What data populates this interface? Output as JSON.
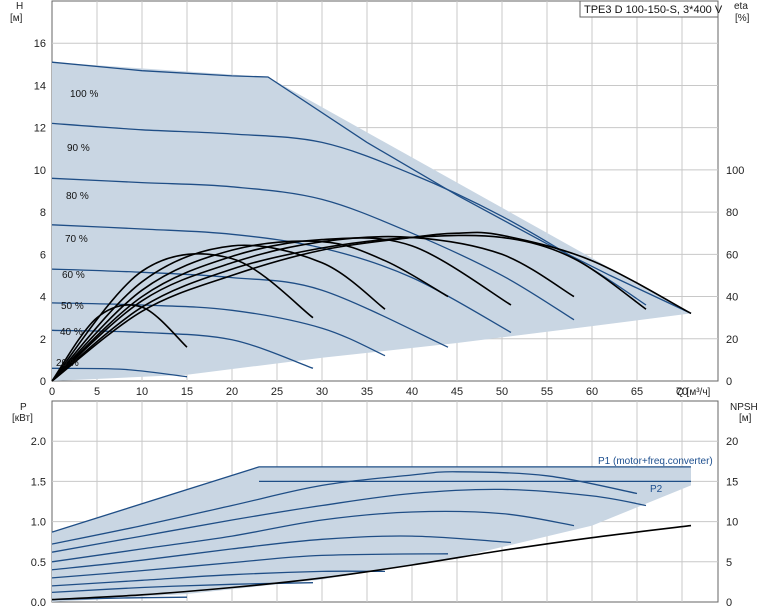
{
  "title": "TPE3 D 100-150-S, 3*400 V",
  "colors": {
    "envelope_fill": "#c9d6e3",
    "envelope_edge": "#1f4e86",
    "qh_curve": "#1f4e86",
    "eta_curve": "#000000",
    "npsh_curve": "#000000",
    "power_curve": "#1f4e86",
    "grid": "#c8c8c8"
  },
  "top_axes": {
    "left_title": "H",
    "left_unit": "[м]",
    "right_title": "eta",
    "right_unit": "[%]",
    "x_title": "Q [м³/ч]",
    "x_ticks": [
      "0",
      "5",
      "10",
      "15",
      "20",
      "25",
      "30",
      "35",
      "40",
      "45",
      "50",
      "55",
      "60",
      "65",
      "70"
    ],
    "left_ticks": [
      "0",
      "2",
      "4",
      "6",
      "8",
      "10",
      "12",
      "14",
      "16"
    ],
    "right_ticks": [
      "0",
      "20",
      "40",
      "60",
      "80",
      "100"
    ]
  },
  "bottom_axes": {
    "left_title": "P",
    "left_unit": "[кВт]",
    "right_title": "NPSH",
    "right_unit": "[м]",
    "left_ticks": [
      "0.0",
      "0.5",
      "1.0",
      "1.5",
      "2.0"
    ],
    "right_ticks": [
      "0",
      "5",
      "10",
      "15",
      "20"
    ]
  },
  "speed_labels": [
    "100 %",
    "90 %",
    "80 %",
    "70 %",
    "60 %",
    "50 %",
    "40 %",
    "20 %"
  ],
  "legend": {
    "p1": "P1 (motor+freq.converter)",
    "p2": "P2"
  },
  "chart_data": [
    {
      "type": "line",
      "title": "TPE3 D 100-150-S, 3*400 V",
      "xlabel": "Q [м³/ч]",
      "ylabel": "H [м]",
      "y2label": "eta [%]",
      "xlim": [
        0,
        74
      ],
      "ylim": [
        0,
        18
      ],
      "y2lim": [
        0,
        180
      ],
      "grid": true,
      "envelope": {
        "x": [
          0,
          24,
          71,
          71,
          60,
          45,
          30,
          15,
          0
        ],
        "y": [
          15.1,
          14.4,
          3.2,
          3.2,
          2.6,
          1.8,
          1.1,
          0.3,
          0.0
        ]
      },
      "series": [
        {
          "name": "100 %",
          "x": [
            0,
            10,
            20,
            24,
            35,
            45,
            55,
            62,
            71
          ],
          "y": [
            15.1,
            14.7,
            14.45,
            14.4,
            11.3,
            8.8,
            6.5,
            5.0,
            3.2
          ],
          "range_left": 15.1
        },
        {
          "name": "90 %",
          "x": [
            0,
            10,
            20,
            30,
            40,
            50,
            60,
            66
          ],
          "y": [
            12.2,
            11.9,
            11.7,
            11.3,
            9.8,
            7.8,
            5.3,
            3.6
          ]
        },
        {
          "name": "80 %",
          "x": [
            0,
            10,
            20,
            30,
            40,
            50,
            58
          ],
          "y": [
            9.6,
            9.4,
            9.2,
            8.6,
            7.0,
            5.0,
            2.9
          ]
        },
        {
          "name": "70 %",
          "x": [
            0,
            10,
            20,
            30,
            40,
            51
          ],
          "y": [
            7.4,
            7.2,
            6.95,
            6.3,
            4.9,
            2.3
          ]
        },
        {
          "name": "60 %",
          "x": [
            0,
            10,
            20,
            30,
            44
          ],
          "y": [
            5.3,
            5.15,
            4.9,
            4.3,
            1.6
          ]
        },
        {
          "name": "50 %",
          "x": [
            0,
            10,
            20,
            30,
            37
          ],
          "y": [
            3.7,
            3.6,
            3.35,
            2.5,
            1.2
          ]
        },
        {
          "name": "40 %",
          "x": [
            0,
            10,
            20,
            29
          ],
          "y": [
            2.4,
            2.3,
            1.95,
            0.6
          ]
        },
        {
          "name": "20 %",
          "x": [
            0,
            8,
            15
          ],
          "y": [
            0.6,
            0.55,
            0.2
          ]
        },
        {
          "name": "eta 100 %",
          "axis": "right",
          "x": [
            0,
            10,
            20,
            30,
            40,
            45,
            50,
            60,
            71
          ],
          "y": [
            0,
            33,
            50,
            62,
            68,
            70,
            69,
            57,
            32
          ]
        },
        {
          "name": "eta 90 %",
          "axis": "right",
          "x": [
            0,
            10,
            20,
            30,
            40,
            50,
            58,
            66
          ],
          "y": [
            0,
            35,
            53,
            63,
            68,
            68,
            58,
            34
          ]
        },
        {
          "name": "eta 80 %",
          "axis": "right",
          "x": [
            0,
            10,
            20,
            30,
            40,
            50,
            58
          ],
          "y": [
            0,
            38,
            56,
            66,
            68,
            60,
            40
          ]
        },
        {
          "name": "eta 70 %",
          "axis": "right",
          "x": [
            0,
            10,
            20,
            30,
            40,
            51
          ],
          "y": [
            0,
            40,
            59,
            67,
            64,
            36
          ]
        },
        {
          "name": "eta 60 %",
          "axis": "right",
          "x": [
            0,
            10,
            20,
            30,
            37,
            44
          ],
          "y": [
            0,
            43,
            62,
            66,
            57,
            40
          ]
        },
        {
          "name": "eta 50 %",
          "axis": "right",
          "x": [
            0,
            10,
            20,
            30,
            37
          ],
          "y": [
            0,
            47,
            64,
            56,
            34
          ]
        },
        {
          "name": "eta 40 %",
          "axis": "right",
          "x": [
            0,
            10,
            20,
            29
          ],
          "y": [
            0,
            52,
            58,
            30
          ]
        },
        {
          "name": "eta 20 %",
          "axis": "right",
          "x": [
            0,
            5,
            10,
            15
          ],
          "y": [
            0,
            30,
            35,
            16
          ]
        }
      ]
    },
    {
      "type": "line",
      "xlabel": "Q [м³/ч]",
      "ylabel": "P [кВт]",
      "y2label": "NPSH [м]",
      "xlim": [
        0,
        74
      ],
      "ylim": [
        0,
        2.5
      ],
      "y2lim": [
        0,
        25
      ],
      "grid": true,
      "envelope": {
        "x": [
          0,
          23,
          71,
          71,
          60,
          45,
          30,
          15,
          0
        ],
        "y": [
          0.87,
          1.68,
          1.68,
          1.45,
          0.95,
          0.55,
          0.28,
          0.1,
          0.0
        ]
      },
      "series": [
        {
          "name": "P1 (motor+freq.converter)",
          "x": [
            0,
            23,
            71
          ],
          "y": [
            0.87,
            1.68,
            1.68
          ]
        },
        {
          "name": "P2",
          "x": [
            23,
            71
          ],
          "y": [
            1.5,
            1.5
          ]
        },
        {
          "name": "P 100 %",
          "x": [
            0,
            10,
            20,
            30,
            40,
            45,
            55,
            65
          ],
          "y": [
            0.72,
            0.95,
            1.2,
            1.45,
            1.58,
            1.62,
            1.57,
            1.35
          ]
        },
        {
          "name": "P 90 %",
          "x": [
            0,
            10,
            20,
            30,
            40,
            50,
            60,
            66
          ],
          "y": [
            0.62,
            0.82,
            1.02,
            1.2,
            1.35,
            1.4,
            1.32,
            1.2
          ]
        },
        {
          "name": "P 80 %",
          "x": [
            0,
            10,
            20,
            30,
            40,
            50,
            58
          ],
          "y": [
            0.5,
            0.66,
            0.82,
            1.02,
            1.12,
            1.1,
            0.95
          ]
        },
        {
          "name": "P 70 %",
          "x": [
            0,
            10,
            20,
            30,
            40,
            51
          ],
          "y": [
            0.4,
            0.52,
            0.66,
            0.78,
            0.82,
            0.74
          ]
        },
        {
          "name": "P 60 %",
          "x": [
            0,
            10,
            20,
            30,
            44
          ],
          "y": [
            0.3,
            0.39,
            0.49,
            0.58,
            0.6
          ]
        },
        {
          "name": "P 50 %",
          "x": [
            0,
            10,
            20,
            30,
            37
          ],
          "y": [
            0.2,
            0.27,
            0.34,
            0.38,
            0.38
          ]
        },
        {
          "name": "P 40 %",
          "x": [
            0,
            10,
            20,
            29
          ],
          "y": [
            0.12,
            0.18,
            0.22,
            0.24
          ]
        },
        {
          "name": "P 20 %",
          "x": [
            0,
            8,
            15
          ],
          "y": [
            0.03,
            0.05,
            0.06
          ]
        },
        {
          "name": "NPSH",
          "axis": "right",
          "x": [
            0,
            10,
            20,
            30,
            40,
            50,
            60,
            71
          ],
          "y": [
            0.3,
            0.9,
            1.8,
            3.0,
            4.6,
            6.4,
            8.0,
            9.5
          ]
        }
      ]
    }
  ]
}
